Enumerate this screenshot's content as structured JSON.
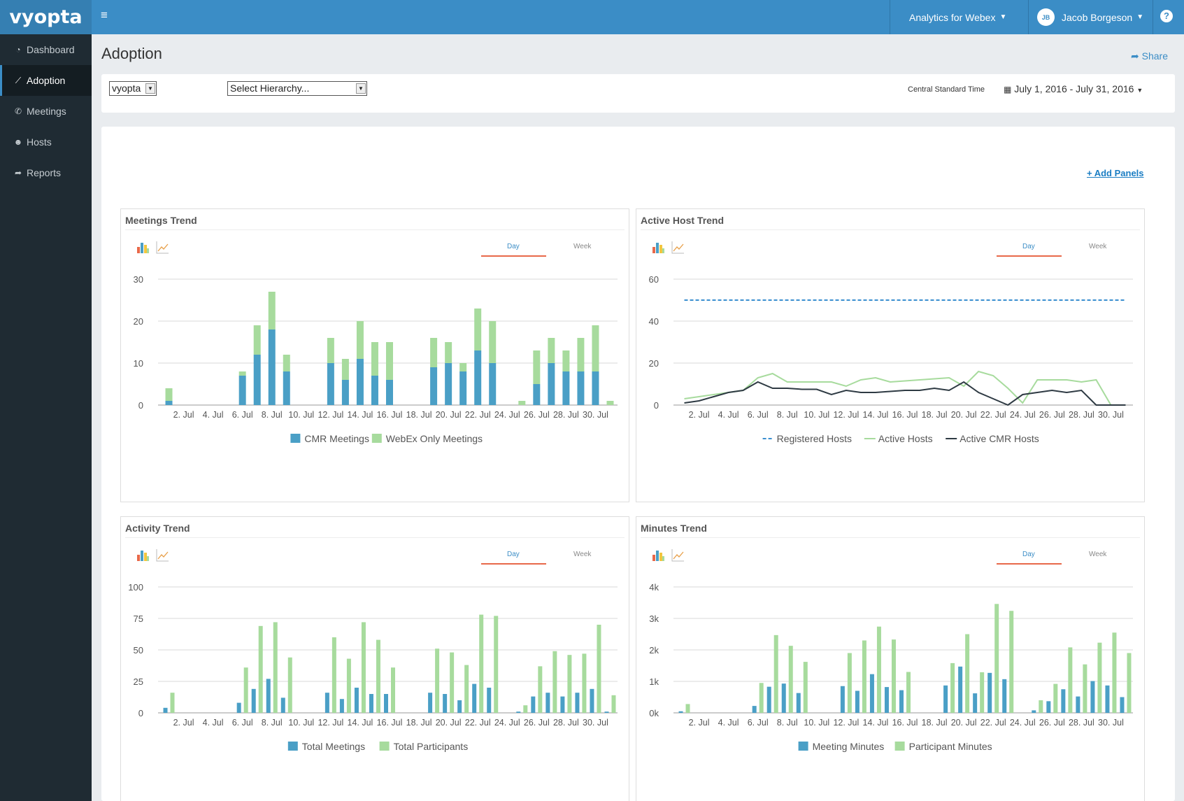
{
  "app": {
    "logo": "vyopta",
    "product_menu": "Analytics for Webex",
    "user_initials": "JB",
    "user_name": "Jacob Borgeson",
    "help": "?"
  },
  "sidebar": {
    "items": [
      {
        "label": "Dashboard",
        "icon": "dashboard-icon"
      },
      {
        "label": "Adoption",
        "icon": "line-chart-icon",
        "active": true
      },
      {
        "label": "Meetings",
        "icon": "phone-icon"
      },
      {
        "label": "Hosts",
        "icon": "users-icon"
      },
      {
        "label": "Reports",
        "icon": "share-icon"
      }
    ]
  },
  "page": {
    "title": "Adoption",
    "share": "Share",
    "org_select": "vyopta",
    "hierarchy_select": "Select Hierarchy...",
    "timezone": "Central Standard Time",
    "date_range": "July 1, 2016 - July 31, 2016",
    "add_panels": "+ Add Panels"
  },
  "colors": {
    "blue": "#4a9fc6",
    "green": "#a7db9d",
    "dark_line": "#2e3a43",
    "dash_blue": "#3a8fd0",
    "accent": "#3b8dc6"
  },
  "panels": [
    {
      "title": "Meetings Trend",
      "tab_day": "Day",
      "tab_week": "Week"
    },
    {
      "title": "Active Host Trend",
      "tab_day": "Day",
      "tab_week": "Week"
    },
    {
      "title": "Activity Trend",
      "tab_day": "Day",
      "tab_week": "Week"
    },
    {
      "title": "Minutes Trend",
      "tab_day": "Day",
      "tab_week": "Week"
    }
  ],
  "chart_data": [
    {
      "type": "bar",
      "stacked": true,
      "title": "Meetings Trend",
      "x_tick_labels": [
        "2. Jul",
        "4. Jul",
        "6. Jul",
        "8. Jul",
        "10. Jul",
        "12. Jul",
        "14. Jul",
        "16. Jul",
        "18. Jul",
        "20. Jul",
        "22. Jul",
        "24. Jul",
        "26. Jul",
        "28. Jul",
        "30. Jul"
      ],
      "ylim": [
        0,
        30
      ],
      "y_ticks": [
        "0",
        "10",
        "20",
        "30"
      ],
      "legend": "bottom",
      "series": [
        {
          "name": "CMR Meetings",
          "color": "#4a9fc6",
          "values": [
            1,
            0,
            0,
            0,
            0,
            7,
            12,
            18,
            8,
            0,
            0,
            10,
            6,
            11,
            7,
            6,
            0,
            0,
            9,
            10,
            8,
            13,
            10,
            0,
            0,
            5,
            10,
            8,
            8,
            8,
            0
          ]
        },
        {
          "name": "WebEx Only Meetings",
          "color": "#a7db9d",
          "values": [
            3,
            0,
            0,
            0,
            0,
            1,
            7,
            9,
            4,
            0,
            0,
            6,
            5,
            9,
            8,
            9,
            0,
            0,
            7,
            5,
            2,
            10,
            10,
            0,
            1,
            8,
            6,
            5,
            8,
            11,
            1
          ]
        }
      ]
    },
    {
      "type": "line",
      "title": "Active Host Trend",
      "x_tick_labels": [
        "2. Jul",
        "4. Jul",
        "6. Jul",
        "8. Jul",
        "10. Jul",
        "12. Jul",
        "14. Jul",
        "16. Jul",
        "18. Jul",
        "20. Jul",
        "22. Jul",
        "24. Jul",
        "26. Jul",
        "28. Jul",
        "30. Jul"
      ],
      "ylim": [
        0,
        60
      ],
      "y_ticks": [
        "0",
        "20",
        "40",
        "60"
      ],
      "legend": "bottom",
      "series": [
        {
          "name": "Registered Hosts",
          "color": "#3a8fd0",
          "dashed": true,
          "values": [
            50,
            50,
            50,
            50,
            50,
            50,
            50,
            50,
            50,
            50,
            50,
            50,
            50,
            50,
            50,
            50,
            50,
            50,
            50,
            50,
            50,
            50,
            50,
            50,
            50,
            50,
            50,
            50,
            50,
            50,
            50
          ]
        },
        {
          "name": "Active Hosts",
          "color": "#a7db9d",
          "values": [
            3,
            4,
            5,
            6,
            7,
            13,
            15,
            11,
            11,
            11,
            11,
            9,
            12,
            13,
            11,
            11.5,
            12,
            12.5,
            13,
            9,
            16,
            14,
            8,
            1,
            12,
            12,
            12,
            11,
            12,
            0,
            0
          ]
        },
        {
          "name": "Active CMR Hosts",
          "color": "#2e3a43",
          "values": [
            1,
            2,
            4,
            6,
            7,
            11,
            8,
            8,
            7.5,
            7.5,
            5,
            7,
            6,
            6,
            6.5,
            7,
            7,
            8,
            7,
            11,
            6,
            3,
            0,
            5,
            6,
            7,
            6,
            7,
            0,
            0,
            0
          ]
        }
      ]
    },
    {
      "type": "bar",
      "title": "Activity Trend",
      "x_tick_labels": [
        "2. Jul",
        "4. Jul",
        "6. Jul",
        "8. Jul",
        "10. Jul",
        "12. Jul",
        "14. Jul",
        "16. Jul",
        "18. Jul",
        "20. Jul",
        "22. Jul",
        "24. Jul",
        "26. Jul",
        "28. Jul",
        "30. Jul"
      ],
      "ylim": [
        0,
        100
      ],
      "y_ticks": [
        "0",
        "25",
        "50",
        "75",
        "100"
      ],
      "legend": "bottom",
      "series": [
        {
          "name": "Total Meetings",
          "color": "#4a9fc6",
          "values": [
            4,
            0,
            0,
            0,
            0,
            8,
            19,
            27,
            12,
            0,
            0,
            16,
            11,
            20,
            15,
            15,
            0,
            0,
            16,
            15,
            10,
            23,
            20,
            0,
            1,
            13,
            16,
            13,
            16,
            19,
            1
          ]
        },
        {
          "name": "Total Participants",
          "color": "#a7db9d",
          "values": [
            16,
            0,
            0,
            0,
            0,
            36,
            69,
            72,
            44,
            0,
            0,
            60,
            43,
            72,
            58,
            36,
            0,
            0,
            51,
            48,
            38,
            78,
            77,
            0,
            6,
            37,
            49,
            46,
            47,
            70,
            14
          ]
        }
      ]
    },
    {
      "type": "bar",
      "title": "Minutes Trend",
      "x_tick_labels": [
        "2. Jul",
        "4. Jul",
        "6. Jul",
        "8. Jul",
        "10. Jul",
        "12. Jul",
        "14. Jul",
        "16. Jul",
        "18. Jul",
        "20. Jul",
        "22. Jul",
        "24. Jul",
        "26. Jul",
        "28. Jul",
        "30. Jul"
      ],
      "ylim": [
        0,
        4000
      ],
      "y_ticks": [
        "0k",
        "1k",
        "2k",
        "3k",
        "4k"
      ],
      "legend": "bottom",
      "series": [
        {
          "name": "Meeting Minutes",
          "color": "#4a9fc6",
          "values": [
            50,
            0,
            0,
            0,
            0,
            220,
            830,
            930,
            630,
            0,
            0,
            850,
            700,
            1230,
            820,
            720,
            0,
            0,
            870,
            1470,
            620,
            1270,
            1070,
            0,
            80,
            370,
            750,
            520,
            1010,
            870,
            500
          ]
        },
        {
          "name": "Participant Minutes",
          "color": "#a7db9d",
          "values": [
            280,
            0,
            0,
            0,
            0,
            950,
            2470,
            2130,
            1620,
            0,
            0,
            1900,
            2300,
            2740,
            2330,
            1300,
            0,
            0,
            1580,
            2500,
            1290,
            3460,
            3240,
            0,
            400,
            920,
            2080,
            1540,
            2230,
            2550,
            1900
          ]
        }
      ]
    }
  ]
}
